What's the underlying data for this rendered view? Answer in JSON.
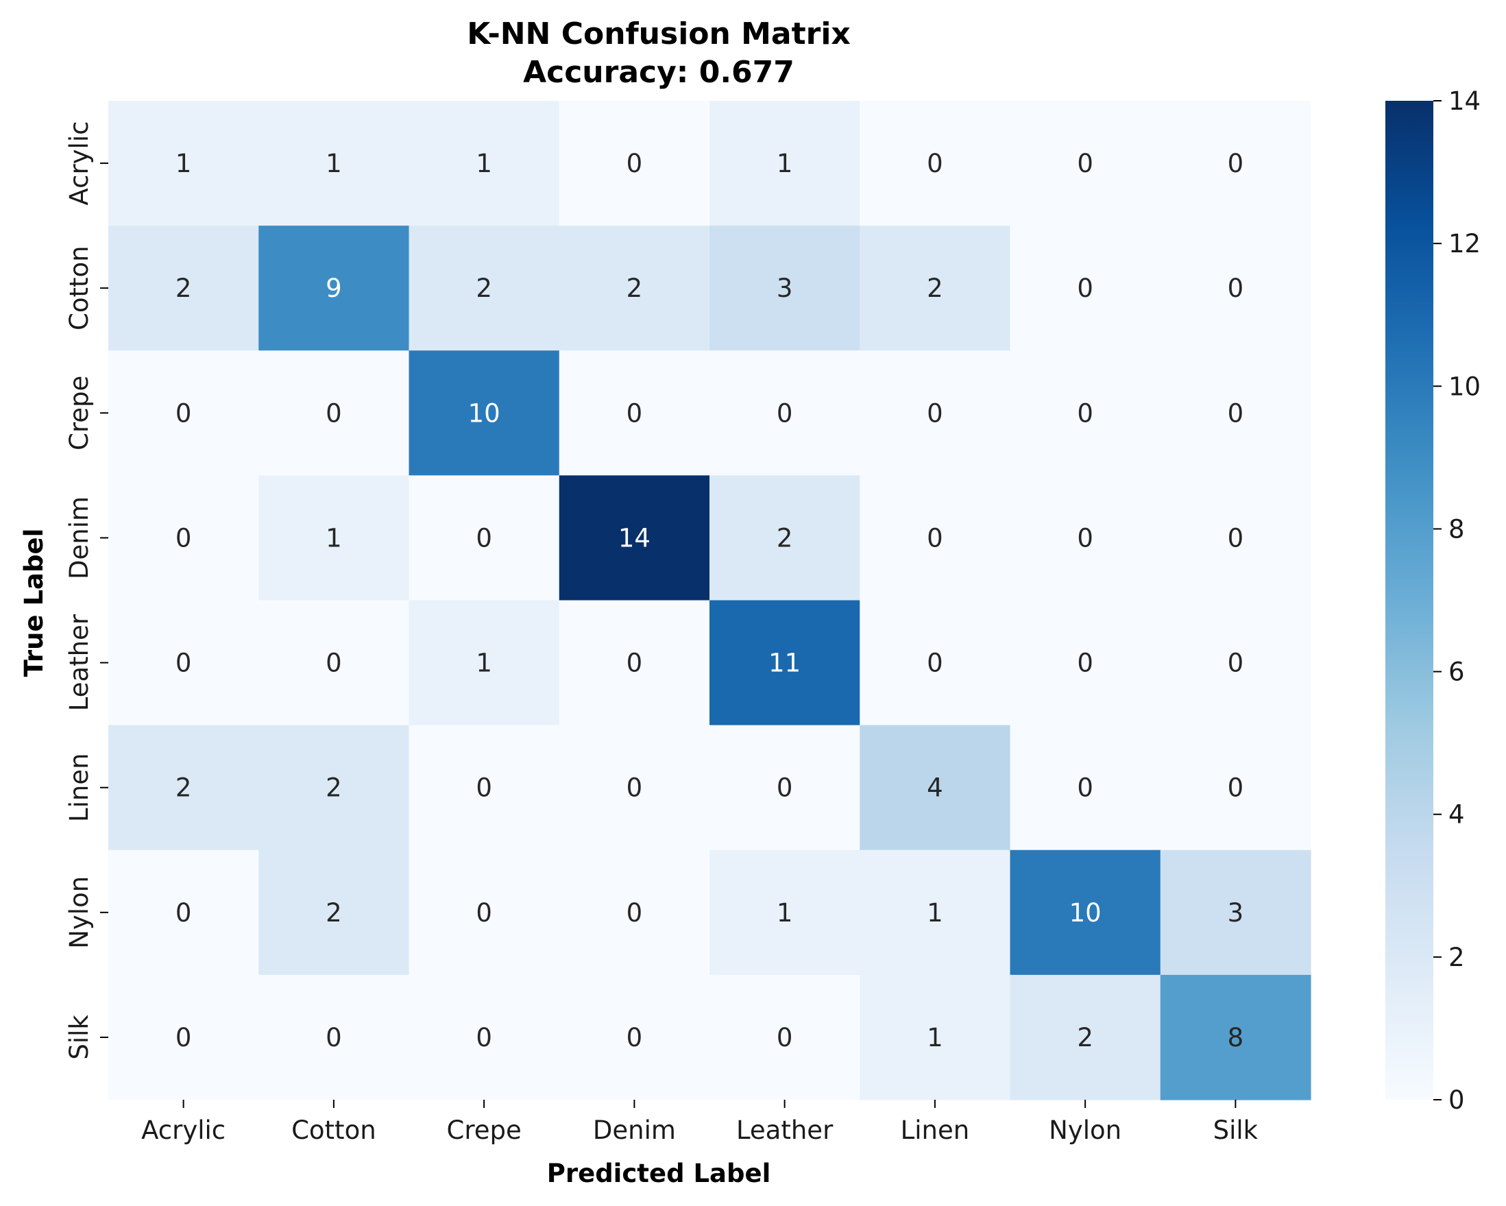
{
  "chart_data": {
    "type": "heatmap",
    "title": "K-NN Confusion Matrix",
    "subtitle": "Accuracy: 0.677",
    "xlabel": "Predicted Label",
    "ylabel": "True Label",
    "x_categories": [
      "Acrylic",
      "Cotton",
      "Crepe",
      "Denim",
      "Leather",
      "Linen",
      "Nylon",
      "Silk"
    ],
    "y_categories": [
      "Acrylic",
      "Cotton",
      "Crepe",
      "Denim",
      "Leather",
      "Linen",
      "Nylon",
      "Silk"
    ],
    "values": [
      [
        1,
        1,
        1,
        0,
        1,
        0,
        0,
        0
      ],
      [
        2,
        9,
        2,
        2,
        3,
        2,
        0,
        0
      ],
      [
        0,
        0,
        10,
        0,
        0,
        0,
        0,
        0
      ],
      [
        0,
        1,
        0,
        14,
        2,
        0,
        0,
        0
      ],
      [
        0,
        0,
        1,
        0,
        11,
        0,
        0,
        0
      ],
      [
        2,
        2,
        0,
        0,
        0,
        4,
        0,
        0
      ],
      [
        0,
        2,
        0,
        0,
        1,
        1,
        10,
        3
      ],
      [
        0,
        0,
        0,
        0,
        0,
        1,
        2,
        8
      ]
    ],
    "colorbar": {
      "min": 0,
      "max": 14,
      "ticks": [
        0,
        2,
        4,
        6,
        8,
        10,
        12,
        14
      ]
    },
    "colormap": "Blues",
    "colormap_stops": [
      "#f7fbff",
      "#deebf7",
      "#c6dbef",
      "#9ecae1",
      "#6baed6",
      "#4292c6",
      "#2171b5",
      "#08519c",
      "#08306b"
    ],
    "grid": false
  }
}
